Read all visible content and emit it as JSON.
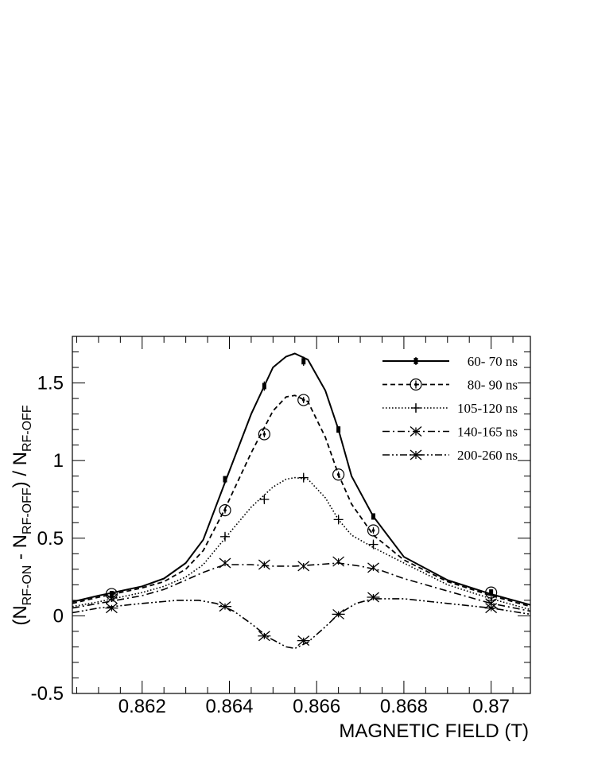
{
  "chart_data": {
    "type": "line",
    "title": "",
    "xlabel": "MAGNETIC FIELD (T)",
    "ylabel": {
      "main": "(N",
      "sub1": "RF-ON",
      "mid": " - N",
      "sub2": "RF-OFF",
      "end": ") / N",
      "sub3": "RF-OFF"
    },
    "xlim": [
      0.8604,
      0.8709
    ],
    "ylim": [
      -0.5,
      1.8
    ],
    "x_ticks": [
      {
        "value": 0.862,
        "label": "0.862"
      },
      {
        "value": 0.864,
        "label": "0.864"
      },
      {
        "value": 0.866,
        "label": "0.866"
      },
      {
        "value": 0.868,
        "label": "0.868"
      },
      {
        "value": 0.87,
        "label": "0.87"
      }
    ],
    "y_ticks": [
      {
        "value": -0.5,
        "label": "-0.5"
      },
      {
        "value": 0,
        "label": "0"
      },
      {
        "value": 0.5,
        "label": "0.5"
      },
      {
        "value": 1,
        "label": "1"
      },
      {
        "value": 1.5,
        "label": "1.5"
      }
    ],
    "grid": false,
    "legend_position": "top-right",
    "series": [
      {
        "name": "60- 70 ns",
        "line": "solid",
        "marker": "square",
        "points": [
          [
            0.8613,
            0.14,
            0.02
          ],
          [
            0.8639,
            0.88,
            0.02
          ],
          [
            0.8648,
            1.48,
            0.03
          ],
          [
            0.8657,
            1.64,
            0.03
          ],
          [
            0.8665,
            1.2,
            0.02
          ],
          [
            0.8673,
            0.64,
            0.02
          ],
          [
            0.87,
            0.15,
            0.02
          ]
        ],
        "curve": [
          [
            0.8604,
            0.09
          ],
          [
            0.861,
            0.13
          ],
          [
            0.862,
            0.19
          ],
          [
            0.8625,
            0.24
          ],
          [
            0.863,
            0.34
          ],
          [
            0.8634,
            0.49
          ],
          [
            0.8639,
            0.86
          ],
          [
            0.8645,
            1.3
          ],
          [
            0.865,
            1.6
          ],
          [
            0.8653,
            1.67
          ],
          [
            0.8655,
            1.69
          ],
          [
            0.8658,
            1.65
          ],
          [
            0.8662,
            1.45
          ],
          [
            0.8665,
            1.2
          ],
          [
            0.8668,
            0.9
          ],
          [
            0.8673,
            0.64
          ],
          [
            0.868,
            0.38
          ],
          [
            0.869,
            0.23
          ],
          [
            0.87,
            0.14
          ],
          [
            0.8709,
            0.07
          ]
        ]
      },
      {
        "name": "80- 90 ns",
        "line": "dashed",
        "marker": "open-circle",
        "points": [
          [
            0.8613,
            0.14,
            0.02
          ],
          [
            0.8639,
            0.68,
            0.02
          ],
          [
            0.8648,
            1.17,
            0.02
          ],
          [
            0.8657,
            1.39,
            0.02
          ],
          [
            0.8665,
            0.91,
            0.02
          ],
          [
            0.8673,
            0.55,
            0.02
          ],
          [
            0.87,
            0.15,
            0.02
          ]
        ],
        "curve": [
          [
            0.8604,
            0.08
          ],
          [
            0.861,
            0.12
          ],
          [
            0.862,
            0.18
          ],
          [
            0.8625,
            0.22
          ],
          [
            0.863,
            0.3
          ],
          [
            0.8634,
            0.42
          ],
          [
            0.8639,
            0.69
          ],
          [
            0.8645,
            1.05
          ],
          [
            0.865,
            1.32
          ],
          [
            0.8653,
            1.41
          ],
          [
            0.8655,
            1.42
          ],
          [
            0.8658,
            1.38
          ],
          [
            0.8662,
            1.15
          ],
          [
            0.8665,
            0.91
          ],
          [
            0.8668,
            0.72
          ],
          [
            0.8673,
            0.52
          ],
          [
            0.868,
            0.36
          ],
          [
            0.869,
            0.22
          ],
          [
            0.87,
            0.13
          ],
          [
            0.8709,
            0.06
          ]
        ]
      },
      {
        "name": "105-120 ns",
        "line": "dotted",
        "marker": "plus",
        "points": [
          [
            0.8613,
            0.12,
            0.02
          ],
          [
            0.8639,
            0.51,
            0.02
          ],
          [
            0.8648,
            0.75,
            0.02
          ],
          [
            0.8657,
            0.89,
            0.02
          ],
          [
            0.8665,
            0.62,
            0.02
          ],
          [
            0.8673,
            0.46,
            0.02
          ],
          [
            0.87,
            0.1,
            0.02
          ]
        ],
        "curve": [
          [
            0.8604,
            0.06
          ],
          [
            0.861,
            0.09
          ],
          [
            0.862,
            0.15
          ],
          [
            0.8625,
            0.19
          ],
          [
            0.863,
            0.25
          ],
          [
            0.8634,
            0.33
          ],
          [
            0.8639,
            0.5
          ],
          [
            0.8645,
            0.7
          ],
          [
            0.865,
            0.83
          ],
          [
            0.8653,
            0.88
          ],
          [
            0.8655,
            0.89
          ],
          [
            0.8658,
            0.88
          ],
          [
            0.8662,
            0.76
          ],
          [
            0.8665,
            0.62
          ],
          [
            0.8668,
            0.52
          ],
          [
            0.8673,
            0.44
          ],
          [
            0.868,
            0.34
          ],
          [
            0.869,
            0.2
          ],
          [
            0.87,
            0.11
          ],
          [
            0.8709,
            0.04
          ]
        ]
      },
      {
        "name": "140-165 ns",
        "line": "dash-dot",
        "marker": "x",
        "points": [
          [
            0.8613,
            0.11,
            0.02
          ],
          [
            0.8639,
            0.34,
            0.02
          ],
          [
            0.8648,
            0.33,
            0.02
          ],
          [
            0.8657,
            0.32,
            0.02
          ],
          [
            0.8665,
            0.35,
            0.02
          ],
          [
            0.8673,
            0.31,
            0.02
          ],
          [
            0.87,
            0.08,
            0.02
          ]
        ],
        "curve": [
          [
            0.8604,
            0.05
          ],
          [
            0.861,
            0.08
          ],
          [
            0.862,
            0.13
          ],
          [
            0.8625,
            0.17
          ],
          [
            0.863,
            0.23
          ],
          [
            0.8634,
            0.28
          ],
          [
            0.8639,
            0.33
          ],
          [
            0.8645,
            0.33
          ],
          [
            0.865,
            0.32
          ],
          [
            0.8655,
            0.32
          ],
          [
            0.866,
            0.33
          ],
          [
            0.8665,
            0.34
          ],
          [
            0.867,
            0.32
          ],
          [
            0.8675,
            0.29
          ],
          [
            0.868,
            0.24
          ],
          [
            0.869,
            0.16
          ],
          [
            0.87,
            0.08
          ],
          [
            0.8709,
            0.03
          ]
        ]
      },
      {
        "name": "200-260 ns",
        "line": "dash-dot-dot",
        "marker": "asterisk",
        "points": [
          [
            0.8613,
            0.05,
            0.02
          ],
          [
            0.8639,
            0.06,
            0.02
          ],
          [
            0.8648,
            -0.13,
            0.02
          ],
          [
            0.8657,
            -0.16,
            0.02
          ],
          [
            0.8665,
            0.01,
            0.02
          ],
          [
            0.8673,
            0.12,
            0.02
          ],
          [
            0.87,
            0.05,
            0.02
          ]
        ],
        "curve": [
          [
            0.8604,
            0.02
          ],
          [
            0.861,
            0.05
          ],
          [
            0.862,
            0.08
          ],
          [
            0.8628,
            0.1
          ],
          [
            0.8633,
            0.1
          ],
          [
            0.8637,
            0.08
          ],
          [
            0.8641,
            0.03
          ],
          [
            0.8645,
            -0.05
          ],
          [
            0.8649,
            -0.14
          ],
          [
            0.8653,
            -0.2
          ],
          [
            0.8655,
            -0.21
          ],
          [
            0.8658,
            -0.17
          ],
          [
            0.8662,
            -0.07
          ],
          [
            0.8665,
            0.01
          ],
          [
            0.8669,
            0.08
          ],
          [
            0.8673,
            0.11
          ],
          [
            0.868,
            0.11
          ],
          [
            0.869,
            0.08
          ],
          [
            0.87,
            0.05
          ],
          [
            0.8709,
            0.01
          ]
        ]
      }
    ]
  }
}
